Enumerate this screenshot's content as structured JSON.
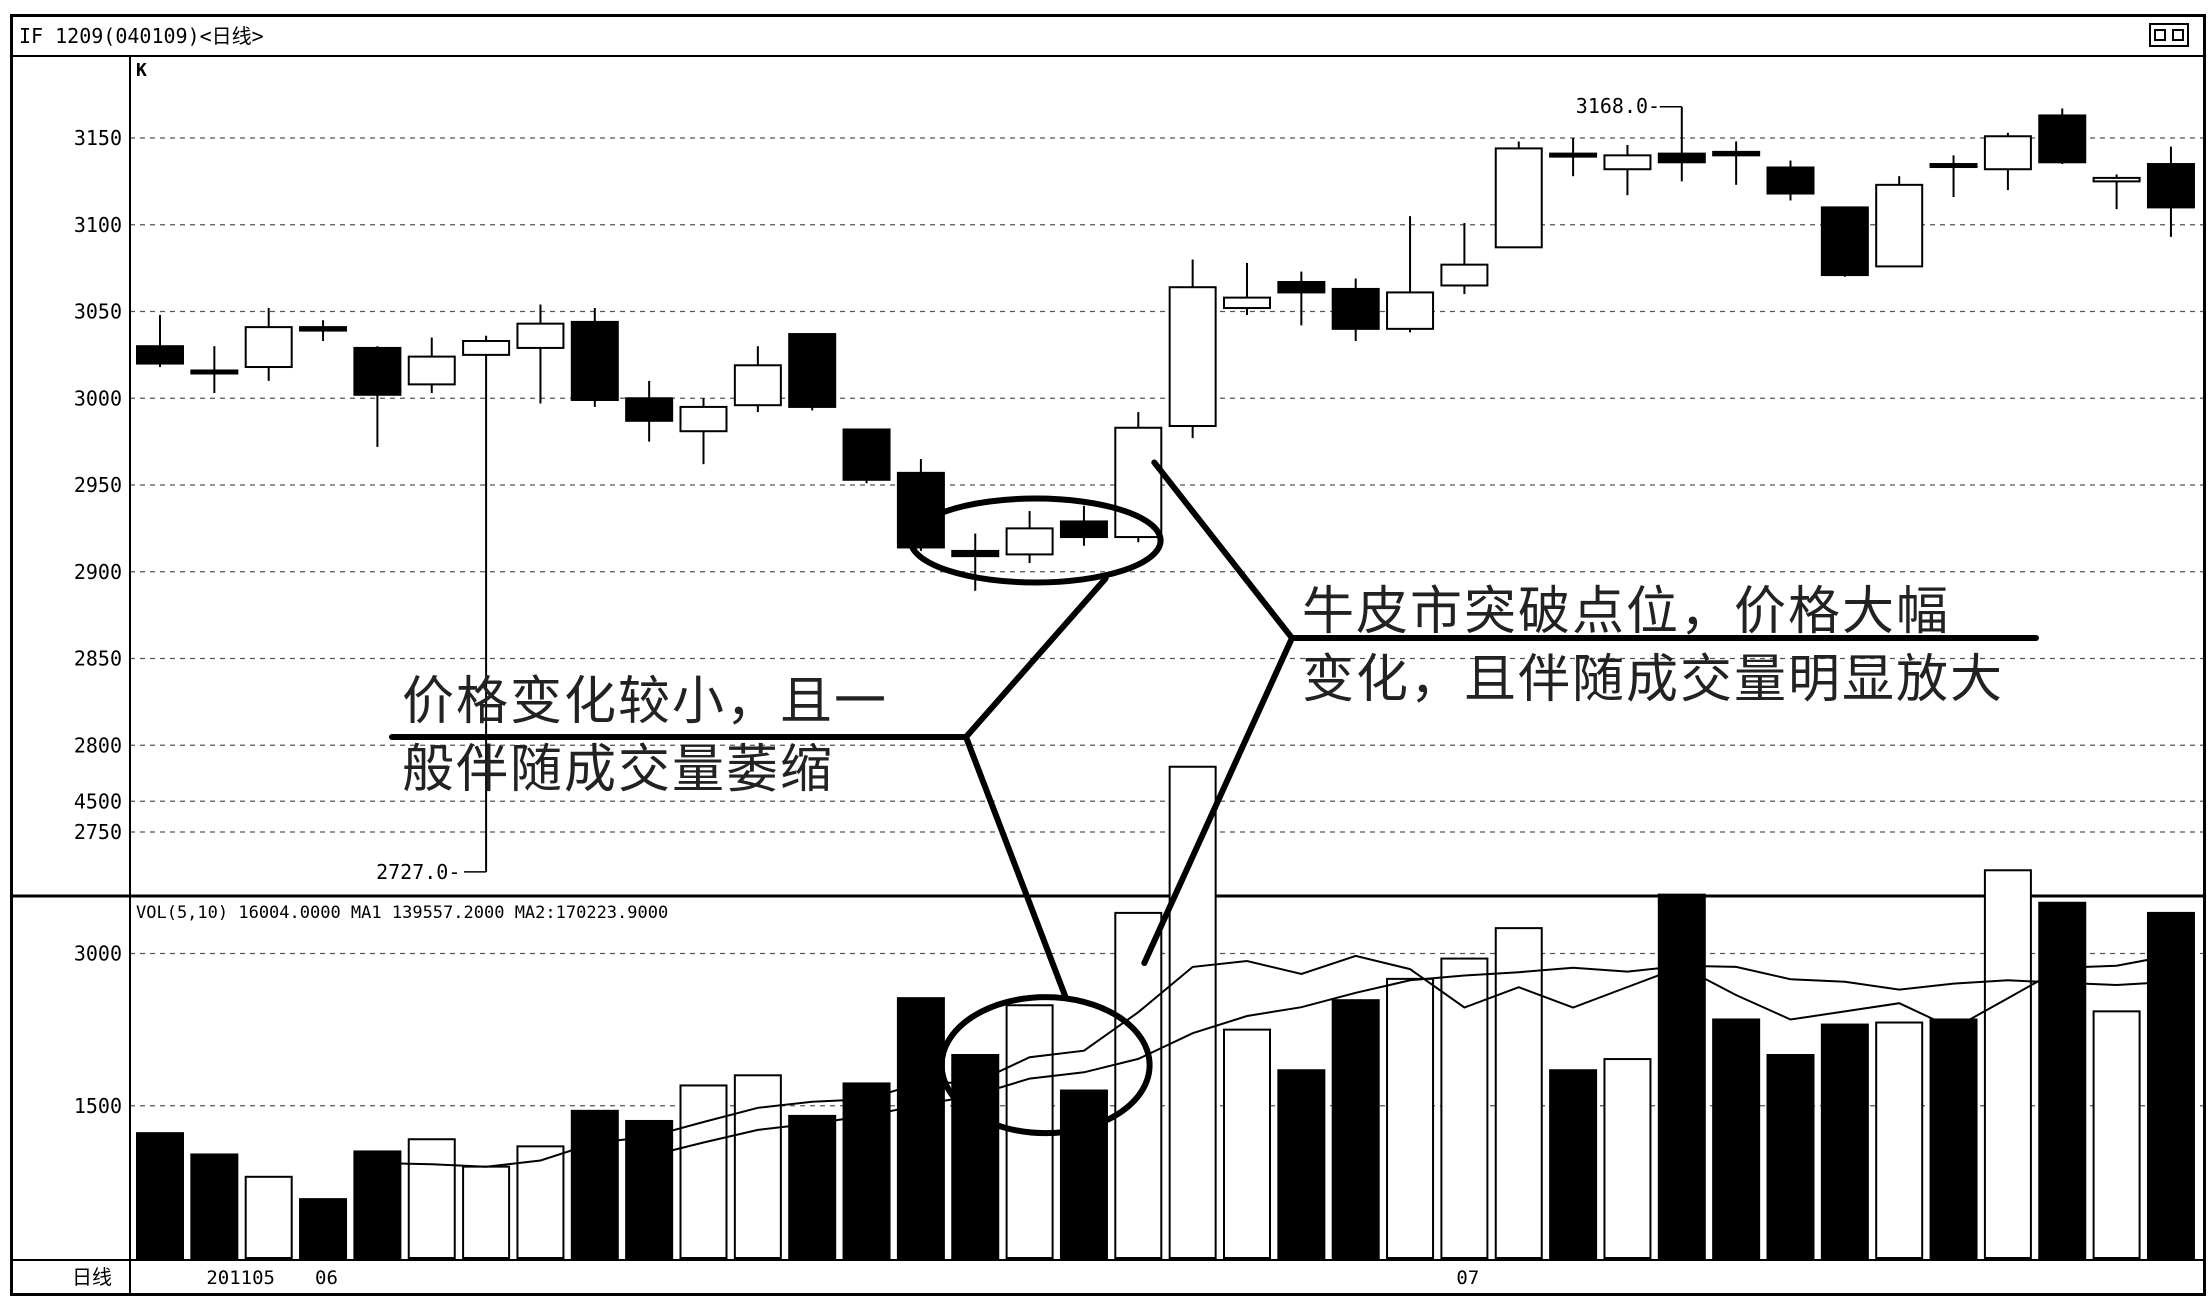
{
  "window": {
    "title": "IF  1209(040109)<日线>",
    "panel_label": "K",
    "axis_label": "日线"
  },
  "annotations": {
    "left_line1": "价格变化较小，且一",
    "left_line2": "般伴随成交量萎缩",
    "right_line1": "牛皮市突破点位，价格大幅",
    "right_line2": "变化，且伴随成交量明显放大"
  },
  "chart_data": [
    {
      "type": "candlestick",
      "yticks": [
        2750,
        2800,
        2850,
        2900,
        2950,
        3000,
        3050,
        3100,
        3150
      ],
      "ylim": [
        2700,
        3200
      ],
      "max_label": "3168.0",
      "min_label": "2727.0",
      "grid": true,
      "candles": [
        {
          "o": 3030,
          "h": 3048,
          "l": 3018,
          "c": 3020
        },
        {
          "o": 3016,
          "h": 3030,
          "l": 3003,
          "c": 3016
        },
        {
          "o": 3018,
          "h": 3052,
          "l": 3010,
          "c": 3041
        },
        {
          "o": 3041,
          "h": 3045,
          "l": 3033,
          "c": 3039
        },
        {
          "o": 3029,
          "h": 3030,
          "l": 2972,
          "c": 3002
        },
        {
          "o": 3008,
          "h": 3035,
          "l": 3003,
          "c": 3024
        },
        {
          "o": 3025,
          "h": 3036,
          "l": 2727,
          "c": 3033
        },
        {
          "o": 3029,
          "h": 3054,
          "l": 2997,
          "c": 3043
        },
        {
          "o": 3044,
          "h": 3052,
          "l": 2995,
          "c": 2999
        },
        {
          "o": 3000,
          "h": 3010,
          "l": 2975,
          "c": 2987
        },
        {
          "o": 2981,
          "h": 3000,
          "l": 2962,
          "c": 2995
        },
        {
          "o": 2996,
          "h": 3030,
          "l": 2992,
          "c": 3019
        },
        {
          "o": 3037,
          "h": 3037,
          "l": 2993,
          "c": 2995
        },
        {
          "o": 2982,
          "h": 2982,
          "l": 2951,
          "c": 2953
        },
        {
          "o": 2957,
          "h": 2965,
          "l": 2912,
          "c": 2914
        },
        {
          "o": 2912,
          "h": 2922,
          "l": 2889,
          "c": 2909
        },
        {
          "o": 2910,
          "h": 2935,
          "l": 2905,
          "c": 2925
        },
        {
          "o": 2929,
          "h": 2938,
          "l": 2915,
          "c": 2920
        },
        {
          "o": 2920,
          "h": 2992,
          "l": 2917,
          "c": 2983
        },
        {
          "o": 2984,
          "h": 3080,
          "l": 2977,
          "c": 3064
        },
        {
          "o": 3052,
          "h": 3078,
          "l": 3048,
          "c": 3058
        },
        {
          "o": 3067,
          "h": 3073,
          "l": 3042,
          "c": 3061
        },
        {
          "o": 3063,
          "h": 3069,
          "l": 3033,
          "c": 3040
        },
        {
          "o": 3040,
          "h": 3105,
          "l": 3038,
          "c": 3061
        },
        {
          "o": 3065,
          "h": 3101,
          "l": 3060,
          "c": 3077
        },
        {
          "o": 3087,
          "h": 3148,
          "l": 3087,
          "c": 3144
        },
        {
          "o": 3141,
          "h": 3150,
          "l": 3128,
          "c": 3140
        },
        {
          "o": 3132,
          "h": 3146,
          "l": 3117,
          "c": 3140
        },
        {
          "o": 3141,
          "h": 3168,
          "l": 3125,
          "c": 3136
        },
        {
          "o": 3142,
          "h": 3148,
          "l": 3123,
          "c": 3140
        },
        {
          "o": 3133,
          "h": 3137,
          "l": 3114,
          "c": 3118
        },
        {
          "o": 3110,
          "h": 3110,
          "l": 3070,
          "c": 3071
        },
        {
          "o": 3076,
          "h": 3128,
          "l": 3076,
          "c": 3123
        },
        {
          "o": 3135,
          "h": 3140,
          "l": 3116,
          "c": 3134
        },
        {
          "o": 3132,
          "h": 3153,
          "l": 3120,
          "c": 3151
        },
        {
          "o": 3163,
          "h": 3167,
          "l": 3135,
          "c": 3136
        },
        {
          "o": 3125,
          "h": 3129,
          "l": 3109,
          "c": 3127
        },
        {
          "o": 3135,
          "h": 3145,
          "l": 3093,
          "c": 3110
        }
      ],
      "x_labels": [
        {
          "index": 1,
          "text": "201105"
        },
        {
          "index": 3,
          "text": "06"
        },
        {
          "index": 24,
          "text": "07"
        }
      ]
    },
    {
      "type": "bar",
      "legend": {
        "vol_label": "VOL(5,10) 16004.0000",
        "ma1_label": "MA1 139557.2000",
        "ma2_label": "MA2:170223.9000"
      },
      "yticks": [
        1500,
        3000,
        4500
      ],
      "ylim": [
        0,
        5000
      ],
      "grid": true,
      "volumes": [
        1230,
        1020,
        800,
        580,
        1050,
        1170,
        900,
        1100,
        1450,
        1350,
        1700,
        1800,
        1400,
        1720,
        2560,
        2000,
        2490,
        1650,
        3400,
        4840,
        2250,
        1850,
        2540,
        2750,
        2950,
        3250,
        1850,
        1960,
        3580,
        2350,
        2000,
        2300,
        2320,
        2350,
        3820,
        3500,
        2430,
        3400
      ],
      "series": [
        {
          "name": "MA1",
          "values": [
            null,
            null,
            null,
            null,
            936,
            924,
            900,
            961,
            1134,
            1194,
            1340,
            1480,
            1540,
            1564,
            1726,
            1726,
            1978,
            2042,
            2422,
            2868,
            2926,
            2798,
            2976,
            2846,
            2468,
            2668,
            2468,
            2670,
            2870,
            2590,
            2350,
            2430,
            2510,
            2260,
            2560,
            2860,
            2880,
            2980
          ]
        },
        {
          "name": "MA2",
          "values": [
            null,
            null,
            null,
            null,
            null,
            null,
            null,
            null,
            null,
            1005,
            1138,
            1262,
            1324,
            1400,
            1507,
            1605,
            1767,
            1830,
            1962,
            2215,
            2384,
            2471,
            2613,
            2736,
            2783,
            2816,
            2860,
            2822,
            2879,
            2868,
            2747,
            2722,
            2644,
            2703,
            2736,
            2711,
            2690,
            2720
          ]
        }
      ]
    }
  ]
}
